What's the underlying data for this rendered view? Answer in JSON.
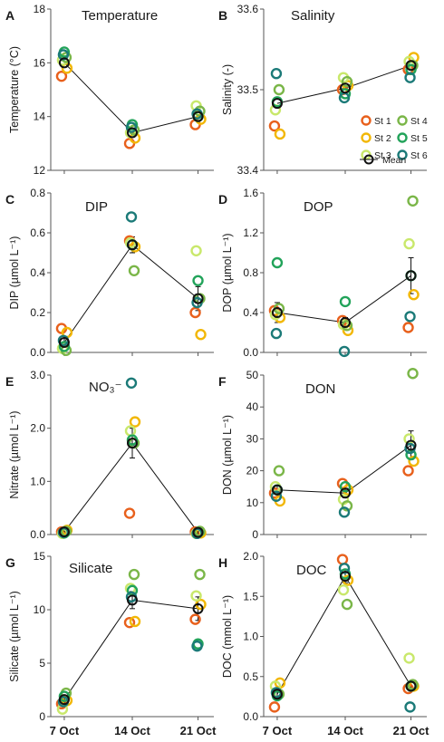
{
  "x_labels": [
    "7 Oct",
    "14 Oct",
    "21 Oct"
  ],
  "station_colors": {
    "St 1": "#e8601c",
    "St 2": "#f2b705",
    "St 3": "#c9e86b",
    "St 4": "#7ab648",
    "St 5": "#22a35a",
    "St 6": "#1b7a78",
    "Mean": "#111111"
  },
  "legend": {
    "entries": [
      {
        "label": "St 1",
        "key": "St 1"
      },
      {
        "label": "St 4",
        "key": "St 4"
      },
      {
        "label": "St 2",
        "key": "St 2"
      },
      {
        "label": "St 5",
        "key": "St 5"
      },
      {
        "label": "St 3",
        "key": "St 3"
      },
      {
        "label": "St 6",
        "key": "St 6"
      }
    ],
    "mean_label": "Mean"
  },
  "chart_data": [
    {
      "type": "scatter",
      "panel": "A",
      "title": "Temperature",
      "ylabel": "Temperature (°C)",
      "ylim": [
        12,
        18
      ],
      "yticks": [
        12,
        14,
        16,
        18
      ],
      "yticklabels": [
        "12",
        "14",
        "16",
        "18"
      ],
      "x": [
        "7 Oct",
        "14 Oct",
        "21 Oct"
      ],
      "series": [
        {
          "name": "St 1",
          "values": [
            15.5,
            13.0,
            13.7
          ]
        },
        {
          "name": "St 2",
          "values": [
            15.8,
            13.2,
            13.9
          ]
        },
        {
          "name": "St 3",
          "values": [
            16.1,
            13.4,
            14.4
          ]
        },
        {
          "name": "St 4",
          "values": [
            16.2,
            13.5,
            14.2
          ]
        },
        {
          "name": "St 5",
          "values": [
            16.4,
            13.7,
            14.0
          ]
        },
        {
          "name": "St 6",
          "values": [
            16.3,
            13.6,
            14.1
          ]
        }
      ],
      "mean": [
        16.0,
        13.4,
        14.0
      ]
    },
    {
      "type": "scatter",
      "panel": "B",
      "title": "Salinity",
      "ylabel": "Salinity (-)",
      "ylim": [
        33.4,
        33.6
      ],
      "yticks": [
        33.4,
        33.5,
        33.6
      ],
      "yticklabels": [
        "33.4",
        "33.5",
        "33.6"
      ],
      "x": [
        "7 Oct",
        "14 Oct",
        "21 Oct"
      ],
      "series": [
        {
          "name": "St 1",
          "values": [
            33.455,
            33.5,
            33.525
          ]
        },
        {
          "name": "St 2",
          "values": [
            33.445,
            33.505,
            33.54
          ]
        },
        {
          "name": "St 3",
          "values": [
            33.475,
            33.515,
            33.535
          ]
        },
        {
          "name": "St 4",
          "values": [
            33.5,
            33.51,
            33.53
          ]
        },
        {
          "name": "St 5",
          "values": [
            33.485,
            33.495,
            33.525
          ]
        },
        {
          "name": "St 6",
          "values": [
            33.52,
            33.49,
            33.515
          ]
        }
      ],
      "mean": [
        33.483,
        33.502,
        33.53
      ]
    },
    {
      "type": "scatter",
      "panel": "C",
      "title": "DIP",
      "ylabel": "DIP (µmol L⁻¹)",
      "ylim": [
        0,
        0.8
      ],
      "yticks": [
        0,
        0.2,
        0.4,
        0.6,
        0.8
      ],
      "yticklabels": [
        "0.0",
        "0.2",
        "0.4",
        "0.6",
        "0.8"
      ],
      "x": [
        "7 Oct",
        "14 Oct",
        "21 Oct"
      ],
      "series": [
        {
          "name": "St 1",
          "values": [
            0.12,
            0.56,
            0.2
          ]
        },
        {
          "name": "St 2",
          "values": [
            0.1,
            0.53,
            0.09
          ]
        },
        {
          "name": "St 3",
          "values": [
            0.02,
            0.55,
            0.51
          ]
        },
        {
          "name": "St 4",
          "values": [
            0.01,
            0.41,
            0.27
          ]
        },
        {
          "name": "St 5",
          "values": [
            0.03,
            0.54,
            0.36
          ]
        },
        {
          "name": "St 6",
          "values": [
            0.06,
            0.68,
            0.25
          ]
        }
      ],
      "mean": [
        0.05,
        0.54,
        0.27
      ],
      "mean_err": [
        0.02,
        0.04,
        0.06
      ]
    },
    {
      "type": "scatter",
      "panel": "D",
      "title": "DOP",
      "ylabel": "DOP (µmol L⁻¹)",
      "ylim": [
        0,
        1.6
      ],
      "yticks": [
        0,
        0.4,
        0.8,
        1.2,
        1.6
      ],
      "yticklabels": [
        "0.0",
        "0.4",
        "0.8",
        "1.2",
        "1.6"
      ],
      "x": [
        "7 Oct",
        "14 Oct",
        "21 Oct"
      ],
      "series": [
        {
          "name": "St 1",
          "values": [
            0.42,
            0.32,
            0.25
          ]
        },
        {
          "name": "St 2",
          "values": [
            0.35,
            0.22,
            0.58
          ]
        },
        {
          "name": "St 3",
          "values": [
            0.38,
            0.28,
            1.09
          ]
        },
        {
          "name": "St 4",
          "values": [
            0.44,
            0.27,
            1.52
          ]
        },
        {
          "name": "St 5",
          "values": [
            0.9,
            0.51,
            0.77
          ]
        },
        {
          "name": "St 6",
          "values": [
            0.19,
            0.01,
            0.36
          ]
        }
      ],
      "mean": [
        0.4,
        0.3,
        0.77
      ],
      "mean_err": [
        0.1,
        0.05,
        0.18
      ]
    },
    {
      "type": "scatter",
      "panel": "E",
      "title": "NO₃⁻",
      "ylabel": "Nitrate (µmol L⁻¹)",
      "ylim": [
        0,
        3
      ],
      "yticks": [
        0,
        1,
        2,
        3
      ],
      "yticklabels": [
        "0.0",
        "1.0",
        "2.0",
        "3.0"
      ],
      "x": [
        "7 Oct",
        "14 Oct",
        "21 Oct"
      ],
      "series": [
        {
          "name": "St 1",
          "values": [
            0.05,
            0.4,
            0.05
          ]
        },
        {
          "name": "St 2",
          "values": [
            0.08,
            2.12,
            0.03
          ]
        },
        {
          "name": "St 3",
          "values": [
            0.02,
            1.95,
            0.02
          ]
        },
        {
          "name": "St 4",
          "values": [
            0.06,
            1.72,
            0.06
          ]
        },
        {
          "name": "St 5",
          "values": [
            0.03,
            1.78,
            0.04
          ]
        },
        {
          "name": "St 6",
          "values": [
            0.04,
            2.85,
            0.02
          ]
        }
      ],
      "mean": [
        0.05,
        1.72,
        0.04
      ],
      "mean_err": [
        0.02,
        0.28,
        0.02
      ]
    },
    {
      "type": "scatter",
      "panel": "F",
      "title": "DON",
      "ylabel": "DON (µmol L⁻¹)",
      "ylim": [
        0,
        50
      ],
      "yticks": [
        0,
        10,
        20,
        30,
        40,
        50
      ],
      "yticklabels": [
        "0",
        "10",
        "20",
        "30",
        "40",
        "50"
      ],
      "x": [
        "7 Oct",
        "14 Oct",
        "21 Oct"
      ],
      "series": [
        {
          "name": "St 1",
          "values": [
            13,
            16,
            20
          ]
        },
        {
          "name": "St 2",
          "values": [
            10.5,
            14,
            23
          ]
        },
        {
          "name": "St 3",
          "values": [
            15,
            11,
            30
          ]
        },
        {
          "name": "St 4",
          "values": [
            20,
            9,
            50.5
          ]
        },
        {
          "name": "St 5",
          "values": [
            14,
            15,
            25
          ]
        },
        {
          "name": "St 6",
          "values": [
            12,
            7,
            27
          ]
        }
      ],
      "mean": [
        14,
        13,
        28
      ],
      "mean_err": [
        1.5,
        1.5,
        4.5
      ]
    },
    {
      "type": "scatter",
      "panel": "G",
      "title": "Silicate",
      "ylabel": "Silicate (µmol L⁻¹)",
      "ylim": [
        0,
        15
      ],
      "yticks": [
        0,
        5,
        10,
        15
      ],
      "yticklabels": [
        "0",
        "5",
        "10",
        "15"
      ],
      "x": [
        "7 Oct",
        "14 Oct",
        "21 Oct"
      ],
      "series": [
        {
          "name": "St 1",
          "values": [
            1.2,
            8.8,
            9.1
          ]
        },
        {
          "name": "St 2",
          "values": [
            1.5,
            8.9,
            10.5
          ]
        },
        {
          "name": "St 3",
          "values": [
            0.7,
            12.0,
            11.3
          ]
        },
        {
          "name": "St 4",
          "values": [
            2.2,
            13.3,
            13.3
          ]
        },
        {
          "name": "St 5",
          "values": [
            1.9,
            11.8,
            6.8
          ]
        },
        {
          "name": "St 6",
          "values": [
            1.4,
            11.2,
            6.6
          ]
        }
      ],
      "mean": [
        1.6,
        10.9,
        10.1
      ],
      "mean_err": [
        0.3,
        0.8,
        1.1
      ]
    },
    {
      "type": "scatter",
      "panel": "H",
      "title": "DOC",
      "ylabel": "DOC (mmol L⁻¹)",
      "ylim": [
        0,
        2
      ],
      "yticks": [
        0,
        0.5,
        1,
        1.5,
        2
      ],
      "yticklabels": [
        "0.0",
        "0.5",
        "1.0",
        "1.5",
        "2.0"
      ],
      "x": [
        "7 Oct",
        "14 Oct",
        "21 Oct"
      ],
      "series": [
        {
          "name": "St 1",
          "values": [
            0.12,
            1.96,
            0.35
          ]
        },
        {
          "name": "St 2",
          "values": [
            0.42,
            1.7,
            0.38
          ]
        },
        {
          "name": "St 3",
          "values": [
            0.38,
            1.58,
            0.73
          ]
        },
        {
          "name": "St 4",
          "values": [
            0.28,
            1.4,
            0.4
          ]
        },
        {
          "name": "St 5",
          "values": [
            0.26,
            1.78,
            0.38
          ]
        },
        {
          "name": "St 6",
          "values": [
            0.3,
            1.85,
            0.12
          ]
        }
      ],
      "mean": [
        0.28,
        1.75,
        0.38
      ],
      "mean_err": [
        0.05,
        0.08,
        0.06
      ]
    }
  ]
}
